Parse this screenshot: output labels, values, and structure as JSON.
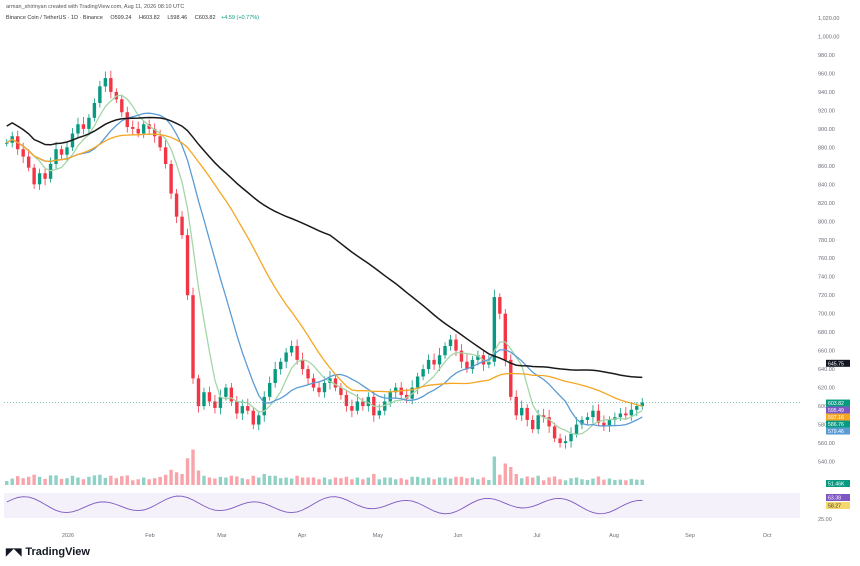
{
  "header": {
    "creator_line": "arman_shirinyan created with TradingView.com, Aug 11, 2026 08:10 UTC"
  },
  "legend": {
    "symbol": "Binance Coin / TetherUS · 1D · Binance",
    "open": "O599.24",
    "high": "H603.82",
    "low": "L598.46",
    "close": "C603.82",
    "change": "+4.59 (+0.77%)"
  },
  "brand": {
    "name": "TradingView"
  },
  "chart_data": {
    "type": "candlestick",
    "symbol": "BNBUSDT",
    "timeframe": "1D",
    "ylim": [
      520,
      1020
    ],
    "y_ticks": [
      "1,020.00",
      "1,000.00",
      "980.00",
      "960.00",
      "940.00",
      "920.00",
      "900.00",
      "880.00",
      "860.00",
      "840.00",
      "820.00",
      "800.00",
      "780.00",
      "760.00",
      "740.00",
      "720.00",
      "700.00",
      "680.00",
      "660.00",
      "640.00",
      "620.00",
      "600.00",
      "580.00",
      "560.00",
      "540.00"
    ],
    "x_ticks": [
      "2026",
      "Feb",
      "Mar",
      "Apr",
      "May",
      "Jun",
      "Jul",
      "Aug",
      "Sep",
      "Oct"
    ],
    "closes": [
      885,
      892,
      878,
      870,
      858,
      840,
      852,
      846,
      862,
      878,
      872,
      880,
      895,
      905,
      900,
      912,
      928,
      946,
      955,
      940,
      932,
      918,
      902,
      900,
      895,
      905,
      900,
      892,
      880,
      862,
      830,
      805,
      785,
      720,
      630,
      600,
      615,
      605,
      598,
      610,
      620,
      605,
      592,
      600,
      595,
      580,
      590,
      610,
      625,
      640,
      648,
      658,
      665,
      650,
      640,
      630,
      620,
      615,
      625,
      630,
      620,
      612,
      600,
      595,
      605,
      600,
      610,
      590,
      595,
      605,
      615,
      620,
      612,
      608,
      620,
      632,
      640,
      650,
      645,
      655,
      665,
      672,
      660,
      648,
      640,
      650,
      655,
      645,
      648,
      718,
      700,
      650,
      610,
      590,
      598,
      585,
      575,
      590,
      588,
      578,
      565,
      560,
      562,
      570,
      580,
      585,
      588,
      595,
      582,
      578,
      585,
      588,
      592,
      590,
      596,
      600,
      603.82
    ],
    "ma_values": {
      "ma200": 645.75,
      "ma100": 603.82,
      "ma50": 579.46,
      "ma20": 586.76
    },
    "price_badges": [
      "645.75",
      "603.82",
      "595.49",
      "597.16",
      "586.76",
      "579.46"
    ],
    "volume_badge": "51.46K",
    "rsi_badges": [
      "63.38",
      "58.27"
    ],
    "rsi_tick": "25.00",
    "series": [
      {
        "name": "MA 20",
        "color": "#a5d6a7"
      },
      {
        "name": "MA 50",
        "color": "#5b9bd5"
      },
      {
        "name": "MA 100",
        "color": "#f5a623"
      },
      {
        "name": "MA 200",
        "color": "#1a1a1a"
      }
    ],
    "colors": {
      "up": "#089981",
      "down": "#f23645",
      "rsi": "#7e57c2"
    }
  }
}
